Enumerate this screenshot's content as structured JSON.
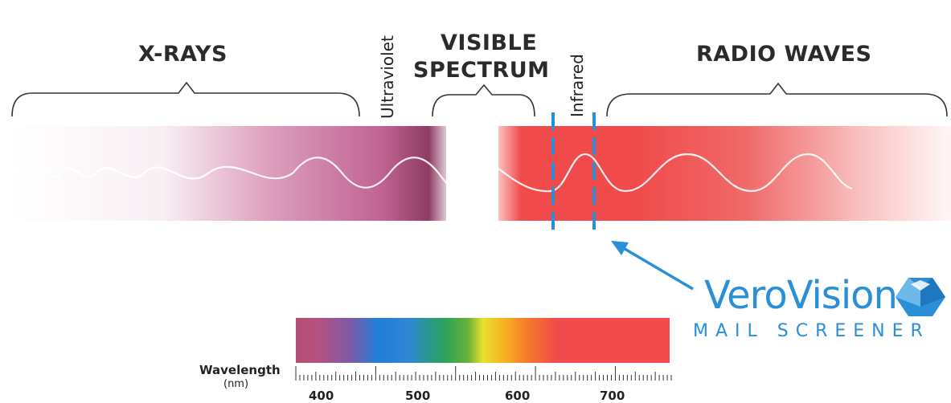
{
  "headings": {
    "xrays": "X-RAYS",
    "visible_line1": "VISIBLE",
    "visible_line2": "SPECTRUM",
    "radio": "RADIO WAVES",
    "ultraviolet": "Ultraviolet",
    "infrared": "Infrared"
  },
  "scale": {
    "label": "Wavelength",
    "unit": "(nm)",
    "ticks": [
      "400",
      "500",
      "600",
      "700"
    ]
  },
  "brand": {
    "name": "VeroVision",
    "tagline": "MAIL SCREENER",
    "color": "#2a8fd6"
  },
  "colors": {
    "xray_band": "#b3507e",
    "infrared_band": "#f04a4a",
    "marker": "#2a8fd6"
  }
}
